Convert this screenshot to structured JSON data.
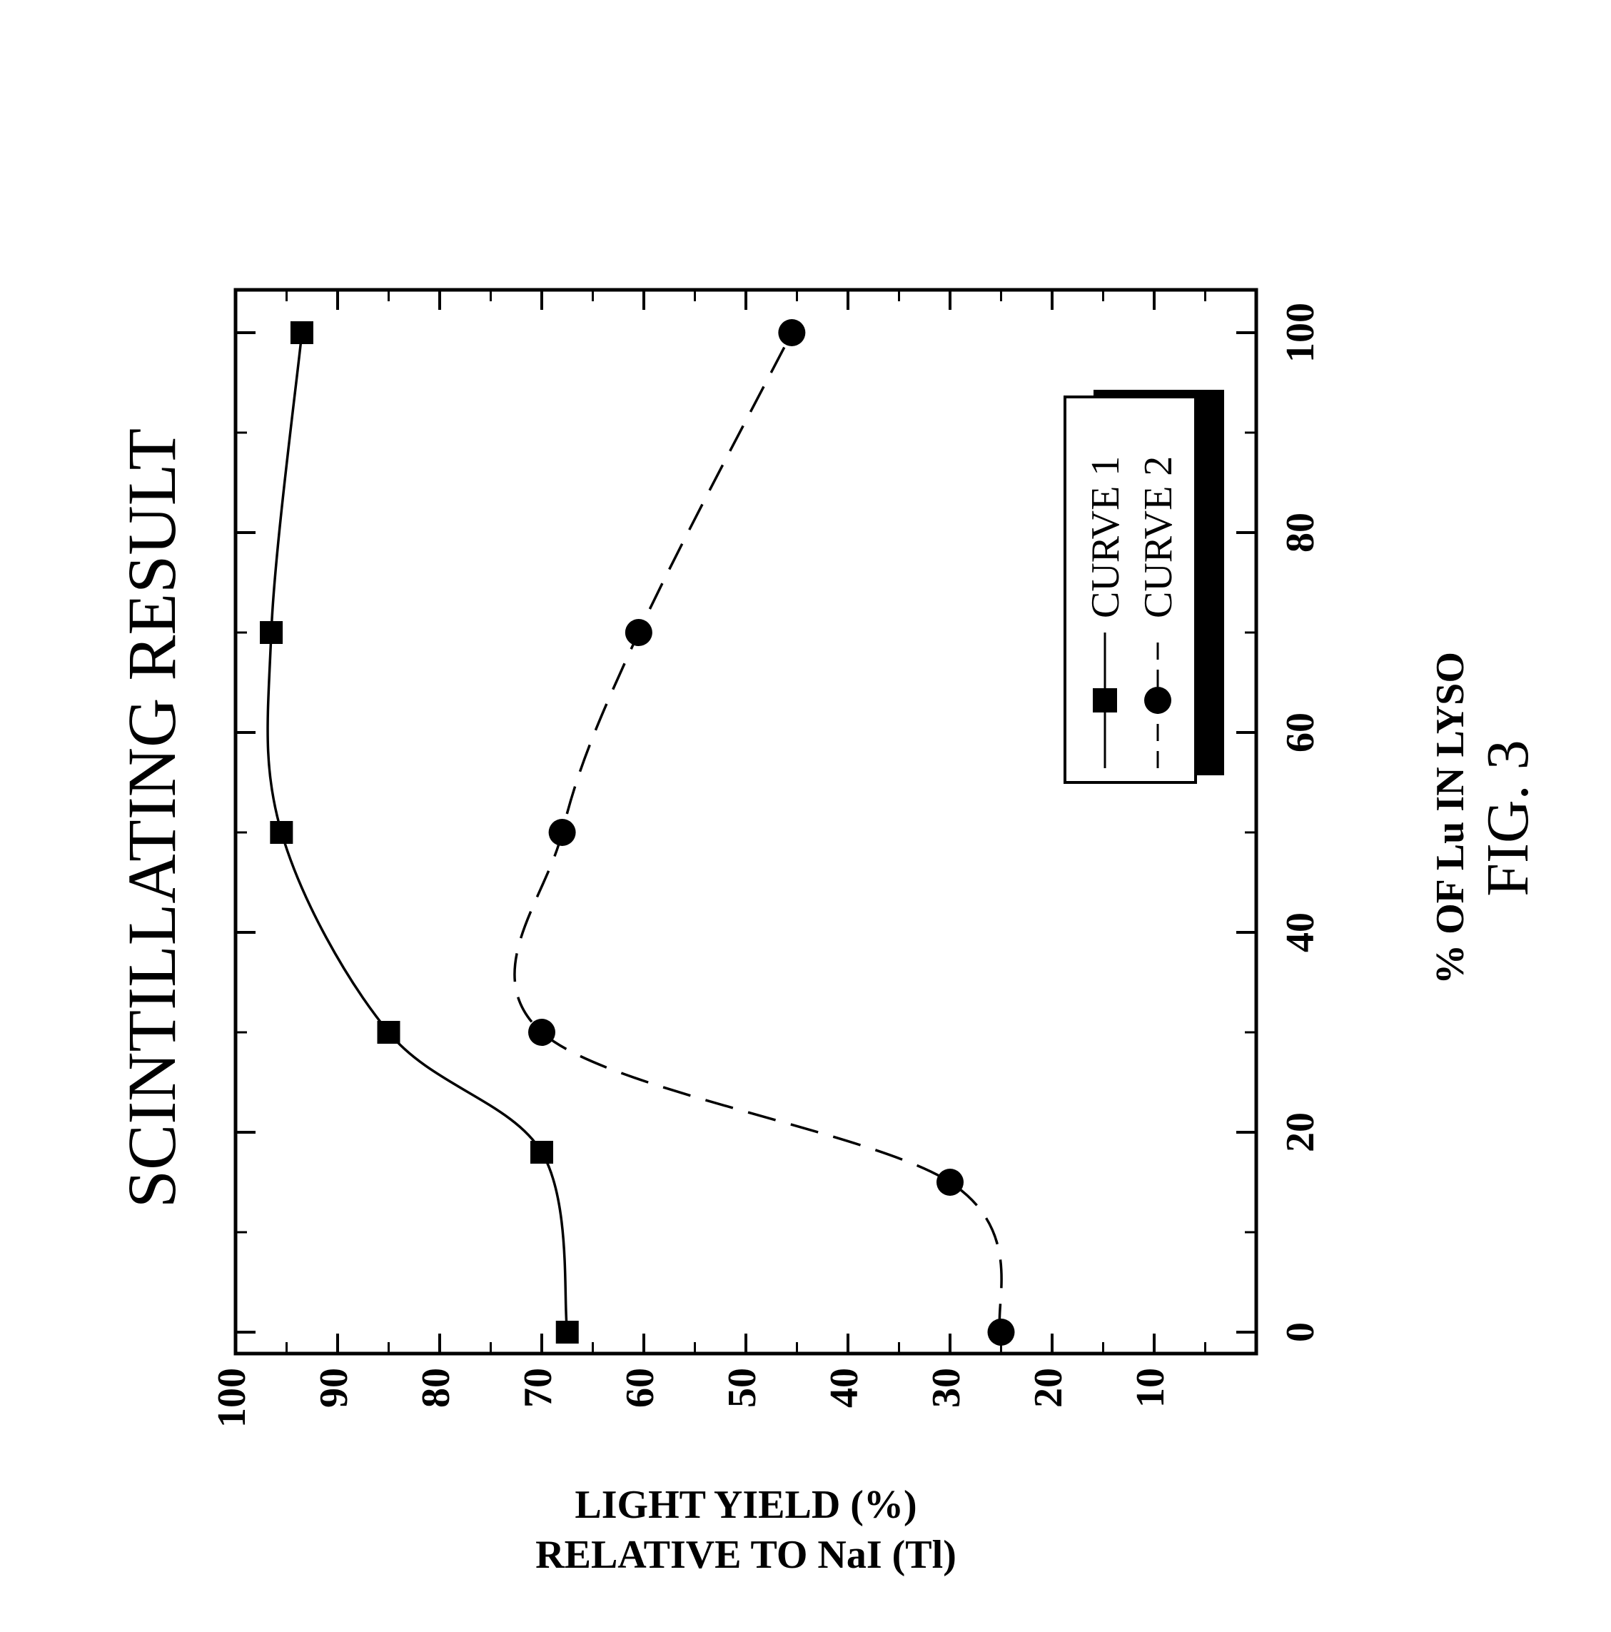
{
  "chart_data": {
    "type": "line",
    "title": "SCINTILLATING RESULT",
    "xlabel": "% OF Lu IN LYSO",
    "ylabel_line1": "LIGHT YIELD (%)",
    "ylabel_line2": "RELATIVE TO NaI (Tl)",
    "figure_label": "FIG. 3",
    "xlim": [
      -3,
      100
    ],
    "ylim": [
      0,
      100
    ],
    "x_ticks": [
      "0",
      "20",
      "40",
      "60",
      "80",
      "100"
    ],
    "y_ticks": [
      "100",
      "90",
      "80",
      "70",
      "60",
      "50",
      "40",
      "30",
      "20",
      "10"
    ],
    "grid": false,
    "legend_position": "top-right",
    "series": [
      {
        "name": "CURVE 1",
        "marker": "square",
        "line_style": "solid",
        "x": [
          0,
          18,
          30,
          50,
          70,
          100
        ],
        "y": [
          67.5,
          70,
          85,
          95.5,
          96.5,
          93.5
        ]
      },
      {
        "name": "CURVE 2",
        "marker": "circle",
        "line_style": "dashed",
        "x": [
          0,
          15,
          30,
          50,
          70,
          100
        ],
        "y": [
          25,
          30,
          70,
          68,
          60.5,
          45.5
        ]
      }
    ]
  }
}
